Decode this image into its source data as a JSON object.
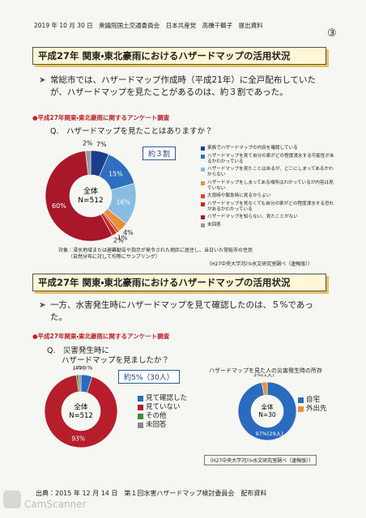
{
  "header": {
    "date_line": "2019 年 10 月 30 日　衆議院国土交通委員会　日本共産党　高橋千鶴子　提出資料",
    "page_mark": "③"
  },
  "sections": [
    {
      "title": "平成27年 関東・東北豪雨におけるハザードマップの活用状況",
      "bullet": "常総市では、ハザードマップ作成時（平成21年）に全戸配布していたが、ハザードマップを見たことがあるのは、約３割であった。"
    },
    {
      "title": "平成27年 関東・東北豪雨におけるハザードマップの活用状況",
      "bullet": "一方、水害発生時にハザードマップを見て確認したのは、５%であった。"
    }
  ],
  "chart_data": [
    {
      "type": "pie",
      "title": "●平成27年関東・東北豪雨に関するアンケート調査",
      "question": "Q.　ハザードマップを見たことはありますか？",
      "center_labels": [
        "全体",
        "N=512"
      ],
      "callout": "約３割",
      "categories": [
        "家族でハザードマップの内容を確認している",
        "ハザードマップを見て自分の家がどの程度浸水する可能性があるかわかっている",
        "ハザードマップを見たことはあるが、どこにしまってあるかわからない",
        "ハザードマップをしまってある場所はわかっているが内容は見ていない",
        "大雨時や緊急時に見るからよい",
        "ハザードマップを見なくても自分の家がどの程度浸水する恐れがあるかわかっている",
        "ハザードマップを知らない、見たことがない",
        "未回答"
      ],
      "values": [
        7,
        15,
        16,
        4,
        1,
        2,
        60,
        2
      ],
      "value_labels": [
        "7%",
        "15%",
        "16%",
        "4%",
        "1%",
        "2%",
        "60%",
        "2%"
      ],
      "colors": [
        "#1c3d8c",
        "#2f6fbf",
        "#86bde0",
        "#ea8f3c",
        "#e2422e",
        "#c42a26",
        "#a8182a",
        "#9a9a9a"
      ],
      "note": [
        "対象：浸水地域または避難勧告や指示が発令された地区に居住し、当日いた常総市の住民",
        "（自然分布に対して均等にサンプリング）"
      ],
      "source": "（H27中央大学河川・水文研究室調べ（速報版））"
    },
    {
      "type": "pie",
      "title": "●平成27年関東・東北豪雨に関するアンケート調査",
      "question": [
        "Q.　災害発生時に",
        "ハザードマップを見ましたか？"
      ],
      "center_labels": [
        "全体",
        "N=512"
      ],
      "callout": "約5%（30人）",
      "categories": [
        "見て確認した",
        "見ていない",
        "その他",
        "未回答"
      ],
      "values": [
        5,
        93,
        1,
        1
      ],
      "value_labels": [
        "5%",
        "93%",
        "1%",
        "1%"
      ],
      "colors": [
        "#2a6bbf",
        "#b51e2a",
        "#3f8a3c",
        "#8a8a8a"
      ]
    },
    {
      "type": "pie",
      "title": "ハザードマップを見た人の災害発生時の所存",
      "center_labels": [
        "全体",
        "N=30"
      ],
      "categories": [
        "自宅",
        "外出先"
      ],
      "values": [
        97,
        3
      ],
      "value_labels": [
        "97%(29人)",
        "3%(1人)"
      ],
      "colors": [
        "#2a6bbf",
        "#ea8f3c"
      ],
      "source": "（H27中央大学河川・水文研究室調べ（速報版））"
    }
  ],
  "footer": {
    "source": "出典：2015 年 12 月 14 日　第１回水害ハザードマップ検討委員会　配布資料",
    "watermark": "CamScanner"
  }
}
